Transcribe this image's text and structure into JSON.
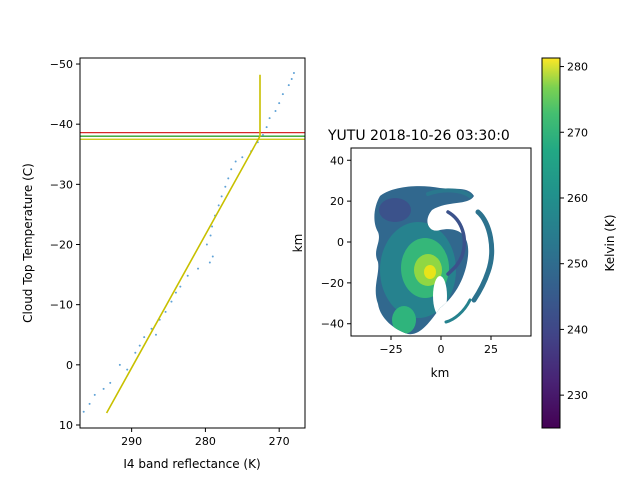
{
  "chart_data": [
    {
      "type": "scatter",
      "xlabel": "I4 band reflectance (K)",
      "ylabel": "Cloud Top Temperature (C)",
      "xlim": [
        297,
        266.5
      ],
      "ylim": [
        10.5,
        -51
      ],
      "y_inverted": true,
      "x_inverted": true,
      "xticks": [
        290,
        280,
        270
      ],
      "xtick_labels": [
        "290",
        "280",
        "270"
      ],
      "yticks": [
        -50,
        -40,
        -30,
        -20,
        -10,
        0,
        10
      ],
      "ytick_labels": [
        "−50",
        "−40",
        "−30",
        "−20",
        "−10",
        "0",
        "10"
      ],
      "scatter_color": "#5fa2d6",
      "scatter_points": [
        [
          296.5,
          7.8
        ],
        [
          295.7,
          6.5
        ],
        [
          295.0,
          5.0
        ],
        [
          293.8,
          4.0
        ],
        [
          292.9,
          3.0
        ],
        [
          291.6,
          0.0
        ],
        [
          290.6,
          0.8
        ],
        [
          289.5,
          -2.0
        ],
        [
          288.9,
          -3.2
        ],
        [
          288.3,
          -4.6
        ],
        [
          287.3,
          -6.0
        ],
        [
          286.7,
          -5.0
        ],
        [
          286.2,
          -7.5
        ],
        [
          285.4,
          -8.8
        ],
        [
          284.6,
          -10.5
        ],
        [
          284.0,
          -12.0
        ],
        [
          283.4,
          -13.0
        ],
        [
          282.4,
          -14.8
        ],
        [
          281.0,
          -16.0
        ],
        [
          279.4,
          -17.0
        ],
        [
          279.0,
          -18.0
        ],
        [
          279.8,
          -20.0
        ],
        [
          279.3,
          -21.5
        ],
        [
          279.1,
          -23.0
        ],
        [
          278.7,
          -24.8
        ],
        [
          278.2,
          -26.5
        ],
        [
          277.8,
          -28.0
        ],
        [
          277.3,
          -29.6
        ],
        [
          276.9,
          -31.0
        ],
        [
          276.5,
          -32.5
        ],
        [
          275.9,
          -33.8
        ],
        [
          275.0,
          -34.5
        ],
        [
          273.8,
          -35.5
        ],
        [
          272.9,
          -37.0
        ],
        [
          272.2,
          -38.2
        ],
        [
          271.7,
          -39.5
        ],
        [
          271.3,
          -41.0
        ],
        [
          270.5,
          -42.2
        ],
        [
          270.0,
          -43.5
        ],
        [
          269.5,
          -45.0
        ],
        [
          268.7,
          -46.5
        ],
        [
          268.3,
          -47.5
        ],
        [
          268.0,
          -48.5
        ]
      ],
      "fit_line": {
        "color": "#c8c000",
        "points": [
          [
            293.4,
            8.0
          ],
          [
            272.6,
            -38.0
          ],
          [
            272.6,
            -48.2
          ]
        ]
      },
      "hlines": [
        {
          "y": -38.6,
          "color": "#d62728"
        },
        {
          "y": -38.0,
          "color": "#2ca02c"
        },
        {
          "y": -37.5,
          "color": "#c8c000"
        }
      ]
    },
    {
      "type": "heatmap",
      "title": "YUTU 2018-10-26 03:30:0",
      "xlabel": "km",
      "ylabel": "km",
      "xlim": [
        -45,
        45
      ],
      "ylim": [
        -46,
        46
      ],
      "xticks": [
        -25,
        0,
        25
      ],
      "xtick_labels": [
        "−25",
        "0",
        "25"
      ],
      "yticks": [
        -40,
        -20,
        0,
        20,
        40
      ],
      "ytick_labels": [
        "−40",
        "−20",
        "0",
        "20",
        "40"
      ],
      "colormap": "viridis",
      "colorbar": {
        "label": "Kelvin (K)",
        "range": [
          225,
          281.3
        ],
        "ticks": [
          230,
          240,
          250,
          260,
          270,
          280
        ],
        "tick_labels": [
          "230",
          "240",
          "250",
          "260",
          "270",
          "280"
        ]
      }
    }
  ]
}
